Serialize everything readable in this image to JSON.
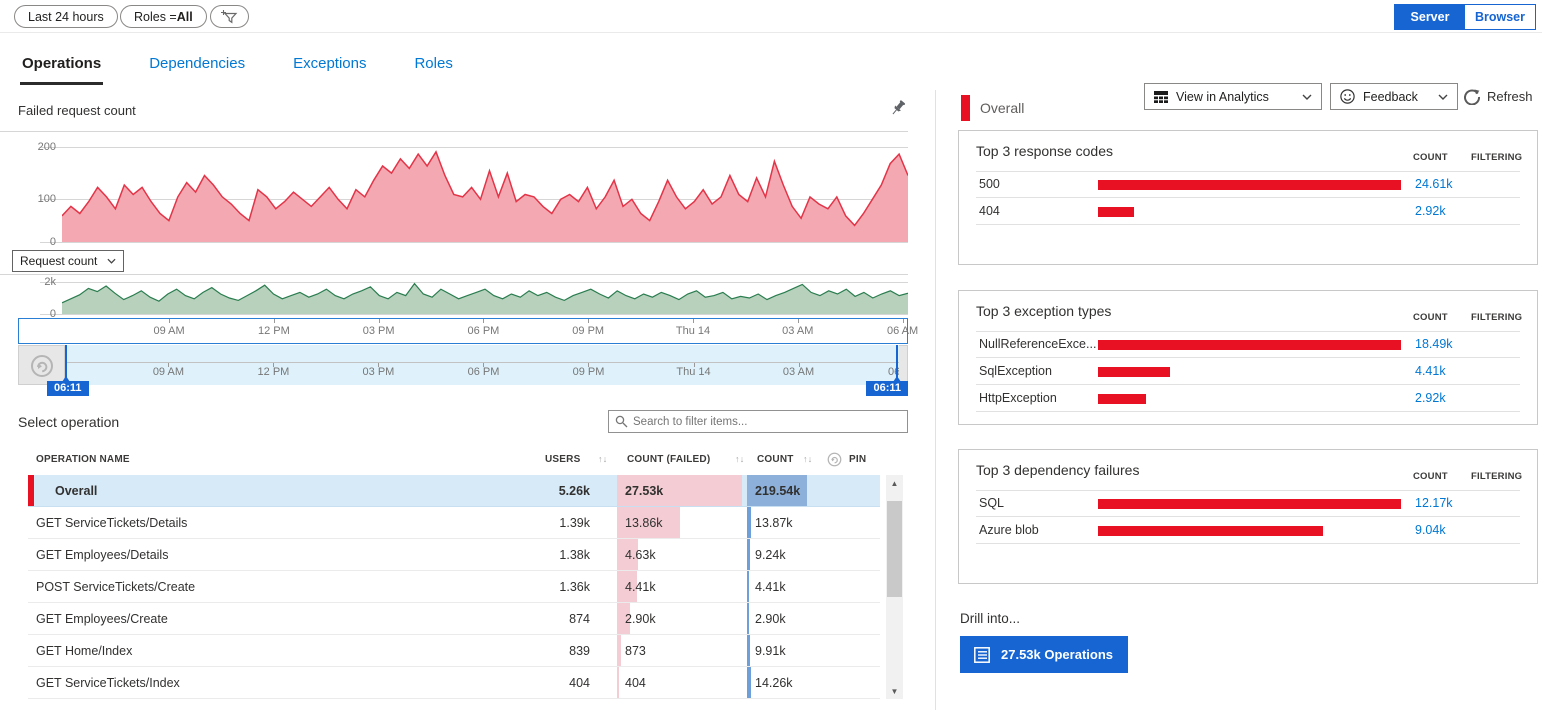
{
  "filters": {
    "time_range": "Last 24 hours",
    "roles_label": "Roles = ",
    "roles_value": "All"
  },
  "toggle": {
    "server": "Server",
    "browser": "Browser"
  },
  "tabs": [
    {
      "label": "Operations",
      "active": true
    },
    {
      "label": "Dependencies",
      "active": false
    },
    {
      "label": "Exceptions",
      "active": false
    },
    {
      "label": "Roles",
      "active": false
    }
  ],
  "toolbar": {
    "view_in_analytics": "View in Analytics",
    "feedback": "Feedback",
    "refresh": "Refresh"
  },
  "icons": {
    "filter_add": "funnel-plus-icon",
    "analytics_grid": "grid-icon",
    "feedback_smiley": "smiley-icon",
    "refresh": "circular-arrow-icon",
    "pin": "pushpin-icon",
    "search": "magnifier-icon",
    "reset": "undo-circle-icon",
    "sort_glyph": "↑↓",
    "scroll_up": "▲",
    "scroll_down": "▼"
  },
  "colors": {
    "accent_blue": "#0078d4",
    "button_blue": "#1665d2",
    "failure_red": "#e81123",
    "chart_red_stroke": "#e33448",
    "chart_red_fill": "#f4a9b2",
    "chart_green_stroke": "#2a7d4f",
    "chart_green_fill": "#b7d1bc",
    "selected_row_blue": "#d7eaf8",
    "failed_cell_pink": "#f3cdd3",
    "count_bar_blue": "#8cb0d9"
  },
  "chart_data": [
    {
      "type": "area",
      "title": "Failed request count",
      "ylim": [
        0,
        200
      ],
      "yticks": [
        "200",
        "100",
        "0"
      ],
      "grid": true,
      "x_labels": [
        "09 AM",
        "12 PM",
        "03 PM",
        "06 PM",
        "09 PM",
        "Thu 14",
        "03 AM",
        "06 AM"
      ],
      "series": [
        {
          "name": "Failed request count",
          "color": "#e33448",
          "values": [
            55,
            75,
            60,
            85,
            115,
            95,
            70,
            120,
            100,
            115,
            85,
            60,
            45,
            95,
            125,
            105,
            140,
            120,
            95,
            80,
            60,
            45,
            110,
            95,
            70,
            85,
            105,
            90,
            75,
            95,
            115,
            90,
            70,
            110,
            95,
            130,
            160,
            145,
            175,
            155,
            185,
            160,
            190,
            140,
            100,
            95,
            115,
            90,
            150,
            95,
            145,
            85,
            100,
            95,
            75,
            60,
            90,
            100,
            85,
            115,
            70,
            95,
            130,
            75,
            90,
            60,
            45,
            85,
            130,
            95,
            70,
            85,
            110,
            80,
            95,
            140,
            100,
            85,
            135,
            95,
            170,
            120,
            75,
            50,
            95,
            80,
            70,
            95,
            55,
            35,
            60,
            90,
            120,
            165,
            185,
            140
          ]
        }
      ]
    },
    {
      "type": "area",
      "title": "Request count",
      "ylim": [
        0,
        2000
      ],
      "yticks": [
        "2k",
        "0"
      ],
      "grid": true,
      "x_labels": [
        "09 AM",
        "12 PM",
        "03 PM",
        "06 PM",
        "09 PM",
        "Thu 14",
        "03 AM",
        "06 AM"
      ],
      "series": [
        {
          "name": "Request count",
          "color": "#2a7d4f",
          "values": [
            700,
            950,
            1200,
            1600,
            1400,
            1750,
            1300,
            900,
            1150,
            1450,
            1050,
            800,
            1250,
            1550,
            1150,
            950,
            1350,
            1650,
            1250,
            1000,
            850,
            1150,
            1450,
            1800,
            1250,
            950,
            1150,
            1350,
            1050,
            1250,
            1550,
            1150,
            950,
            1250,
            1450,
            1700,
            1150,
            950,
            1350,
            1150,
            1900,
            1250,
            1050,
            1550,
            1250,
            950,
            1150,
            1350,
            1550,
            1150,
            950,
            1250,
            1050,
            1450,
            1150,
            1350,
            1050,
            850,
            1150,
            1350,
            1550,
            1250,
            1000,
            1450,
            1150,
            950,
            1250,
            1050,
            1350,
            1150,
            900,
            1250,
            1450,
            1050,
            1150,
            1350,
            950,
            1100,
            1000,
            1250,
            900,
            1150,
            1350,
            1600,
            1850,
            1350,
            1150,
            1450,
            1250,
            1550,
            1100,
            1350,
            1000,
            1250,
            1450,
            1150,
            1300
          ]
        }
      ]
    }
  ],
  "left": {
    "chart_title": "Failed request count",
    "metric_dropdown": "Request count",
    "time_axis_labels": [
      "09 AM",
      "12 PM",
      "03 PM",
      "06 PM",
      "09 PM",
      "Thu 14",
      "03 AM",
      "06 AM"
    ],
    "brush": {
      "start_label": "06:11",
      "end_label": "06:11"
    },
    "select_operation": "Select operation",
    "search_placeholder": "Search to filter items...",
    "table": {
      "columns": [
        "OPERATION NAME",
        "USERS",
        "COUNT (FAILED)",
        "COUNT"
      ],
      "pin_label": "PIN",
      "sort_glyph": "↑↓",
      "rows": [
        {
          "name": "Overall",
          "users": "5.26k",
          "failed": "27.53k",
          "count": "219.54k",
          "failed_pct": 100,
          "count_pct": 100,
          "selected": true
        },
        {
          "name": "GET ServiceTickets/Details",
          "users": "1.39k",
          "failed": "13.86k",
          "count": "13.87k",
          "failed_pct": 50,
          "count_pct": 6.3,
          "selected": false
        },
        {
          "name": "GET Employees/Details",
          "users": "1.38k",
          "failed": "4.63k",
          "count": "9.24k",
          "failed_pct": 17,
          "count_pct": 4.2,
          "selected": false
        },
        {
          "name": "POST ServiceTickets/Create",
          "users": "1.36k",
          "failed": "4.41k",
          "count": "4.41k",
          "failed_pct": 16,
          "count_pct": 2.0,
          "selected": false
        },
        {
          "name": "GET Employees/Create",
          "users": "874",
          "failed": "2.90k",
          "count": "2.90k",
          "failed_pct": 10.5,
          "count_pct": 1.3,
          "selected": false
        },
        {
          "name": "GET Home/Index",
          "users": "839",
          "failed": "873",
          "count": "9.91k",
          "failed_pct": 3.2,
          "count_pct": 4.5,
          "selected": false
        },
        {
          "name": "GET ServiceTickets/Index",
          "users": "404",
          "failed": "404",
          "count": "14.26k",
          "failed_pct": 1.5,
          "count_pct": 6.5,
          "selected": false
        }
      ]
    }
  },
  "right": {
    "overall_label": "Overall",
    "col_count": "COUNT",
    "col_filtering": "FILTERING",
    "cards": [
      {
        "title": "Top 3 response codes",
        "rows": [
          {
            "label": "500",
            "count": "24.61k",
            "pct": 100
          },
          {
            "label": "404",
            "count": "2.92k",
            "pct": 11.9
          }
        ]
      },
      {
        "title": "Top 3 exception types",
        "rows": [
          {
            "label": "NullReferenceExce...",
            "count": "18.49k",
            "pct": 100
          },
          {
            "label": "SqlException",
            "count": "4.41k",
            "pct": 23.9
          },
          {
            "label": "HttpException",
            "count": "2.92k",
            "pct": 15.8
          }
        ]
      },
      {
        "title": "Top 3 dependency failures",
        "rows": [
          {
            "label": "SQL",
            "count": "12.17k",
            "pct": 100
          },
          {
            "label": "Azure blob",
            "count": "9.04k",
            "pct": 74.3
          }
        ]
      }
    ],
    "drill_into": "Drill into...",
    "drill_button": "27.53k Operations"
  }
}
